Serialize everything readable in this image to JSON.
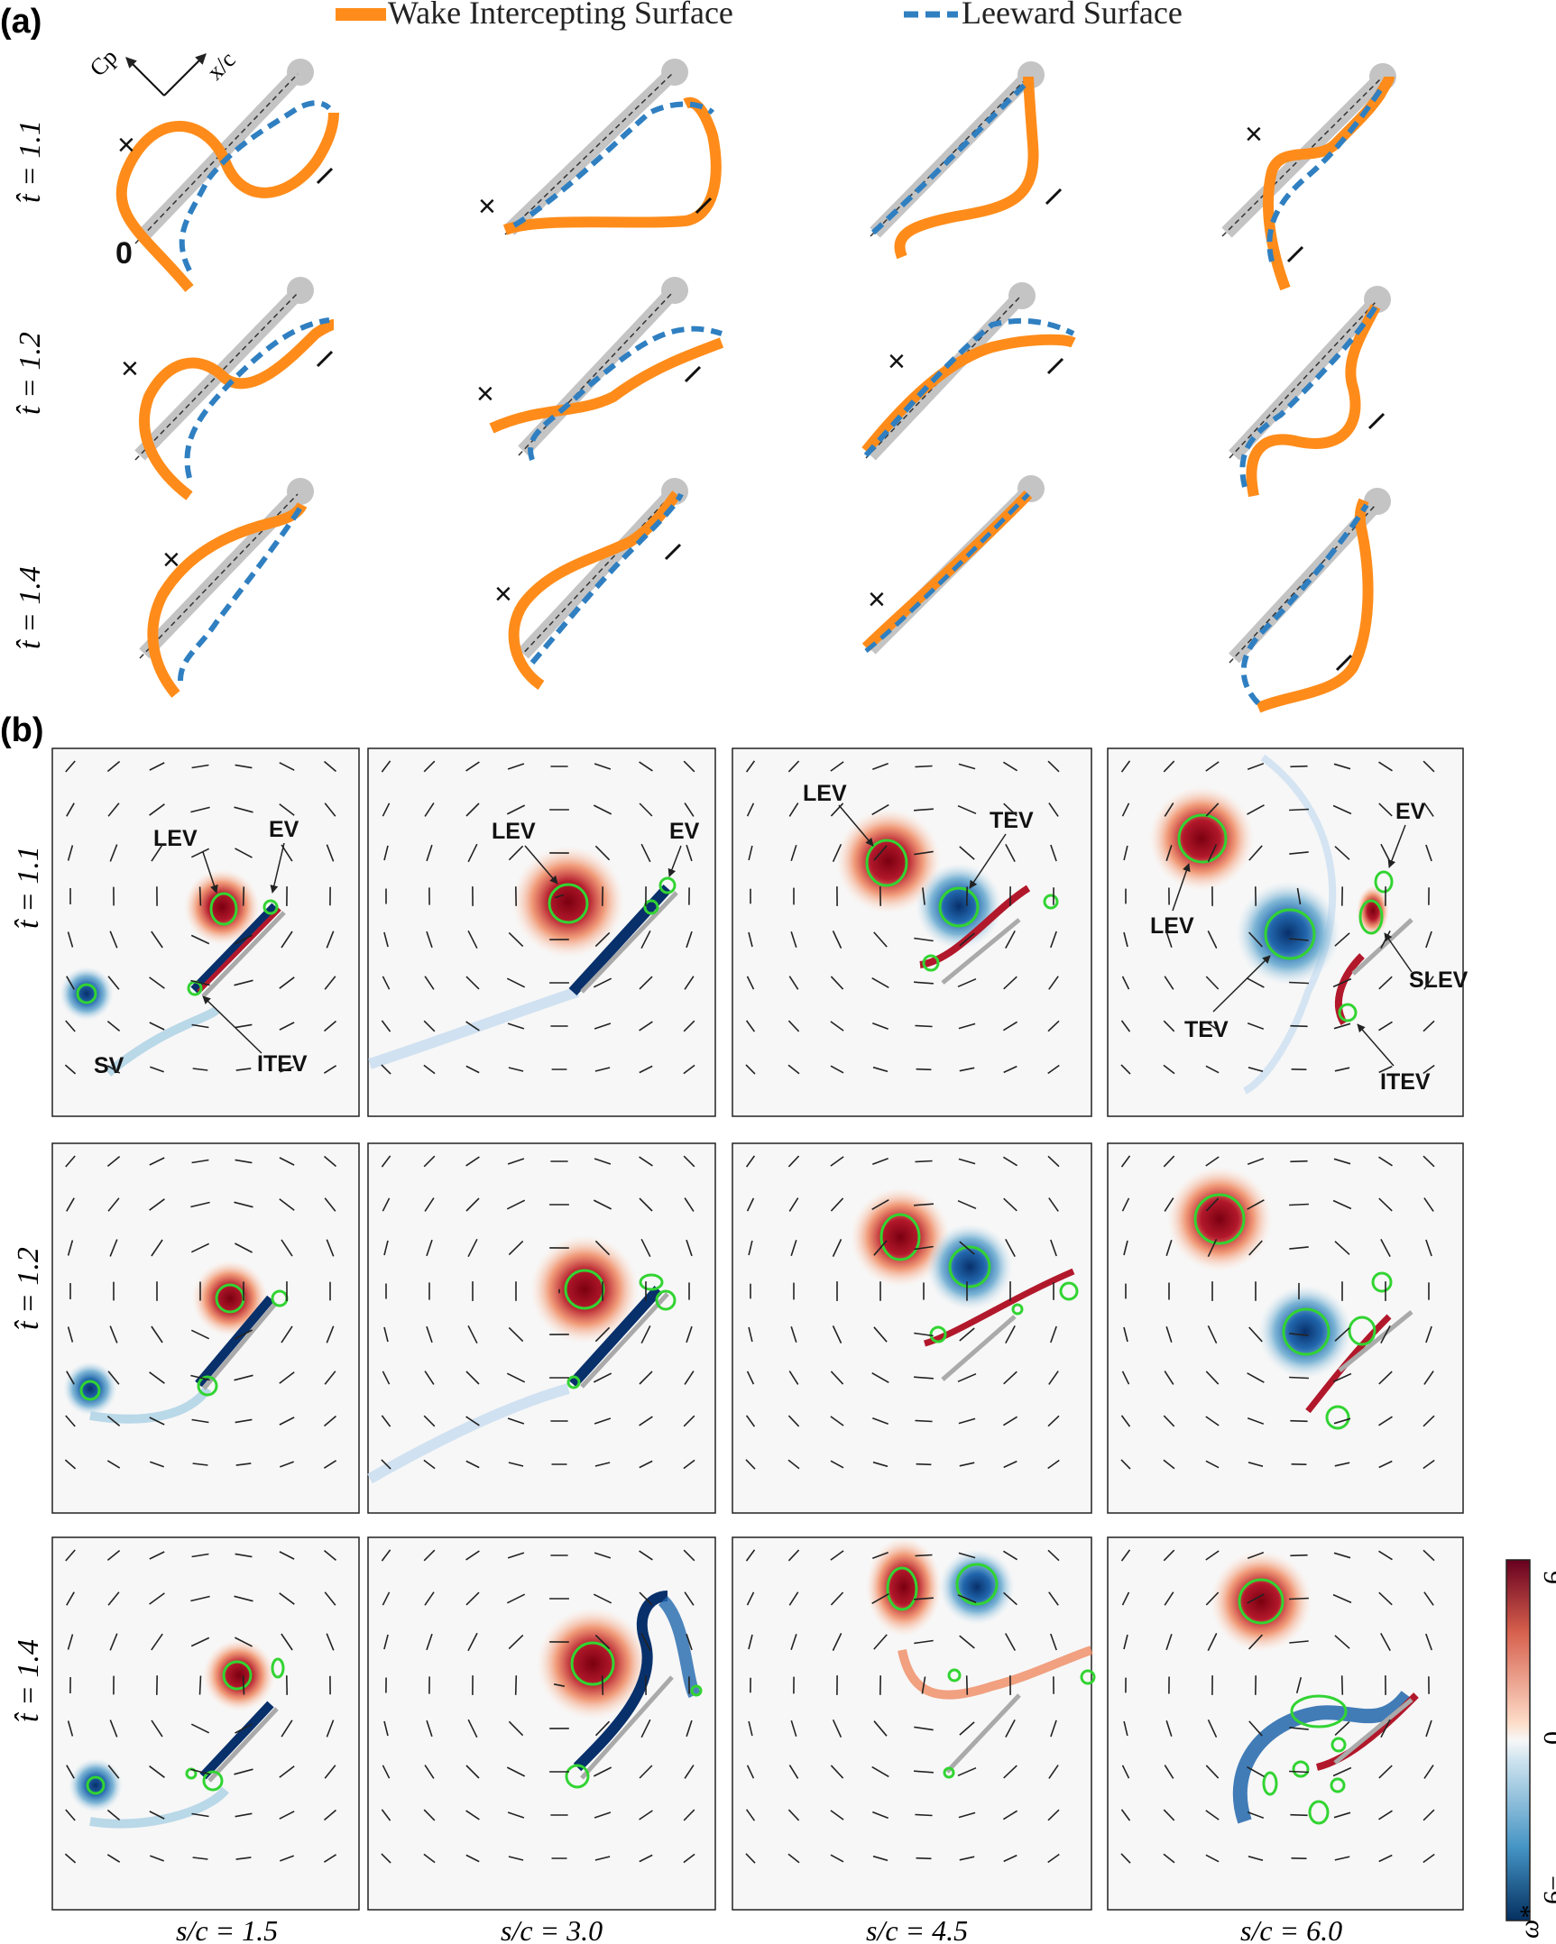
{
  "panel_a": {
    "label": "(a)",
    "legend": {
      "wake_label": "Wake Intercepting Surface",
      "leeward_label": "Leeward Surface",
      "wake_color": "#ff8c1a",
      "leeward_color": "#2f7fc1"
    },
    "axes_glyph": {
      "y_label": "Cp",
      "x_label": "x/c"
    },
    "row_labels": [
      "t̂ = 1.1",
      "t̂ = 1.2",
      "t̂ = 1.4"
    ],
    "markers": {
      "cross": "×",
      "zero": "0",
      "dash": "—"
    }
  },
  "panel_b": {
    "label": "(b)",
    "row_labels": [
      "t̂ = 1.1",
      "t̂ = 1.2",
      "t̂ = 1.4"
    ],
    "column_labels": [
      "s/c = 1.5",
      "s/c = 3.0",
      "s/c = 4.5",
      "s/c = 6.0"
    ],
    "vortex_labels": {
      "c1": [
        "LEV",
        "EV",
        "SV",
        "ITEV"
      ],
      "c2": [
        "LEV",
        "EV"
      ],
      "c3": [
        "LEV",
        "TEV"
      ],
      "c4": [
        "EV",
        "LEV",
        "SLEV",
        "TEV",
        "ITEV"
      ]
    },
    "colorbar": {
      "label": "ω*",
      "max": "9",
      "mid": "0",
      "min": "−9",
      "range": [
        -9,
        9
      ],
      "positive_color": "#7a0010",
      "negative_color": "#08306b"
    }
  }
}
